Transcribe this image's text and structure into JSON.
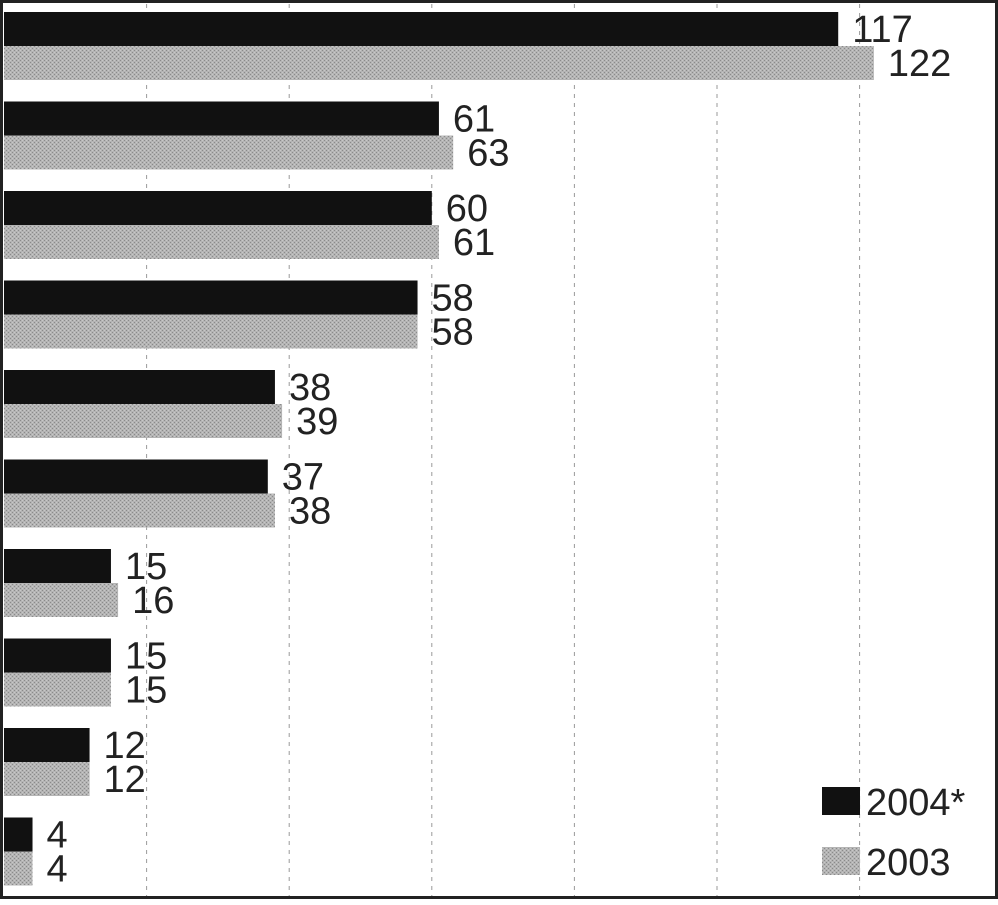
{
  "chart_data": {
    "type": "bar",
    "orientation": "horizontal",
    "categories": [
      "",
      "",
      "",
      "",
      "",
      "",
      "",
      "",
      "",
      ""
    ],
    "series": [
      {
        "name": "2004*",
        "color": "#111111",
        "values": [
          117,
          61,
          60,
          58,
          38,
          37,
          15,
          15,
          12,
          4
        ]
      },
      {
        "name": "2003",
        "color": "#a8a8a8",
        "values": [
          122,
          63,
          61,
          58,
          39,
          38,
          16,
          15,
          12,
          4
        ]
      }
    ],
    "xlim": [
      0,
      140
    ],
    "gridlines": [
      20,
      40,
      60,
      80,
      100,
      120
    ],
    "grid": true,
    "grid_style": "dashed-vertical",
    "data_labels": true,
    "legend": {
      "position": "bottom-right",
      "entries": [
        "2004*",
        "2003"
      ]
    },
    "title": "",
    "xlabel": "",
    "ylabel": ""
  }
}
